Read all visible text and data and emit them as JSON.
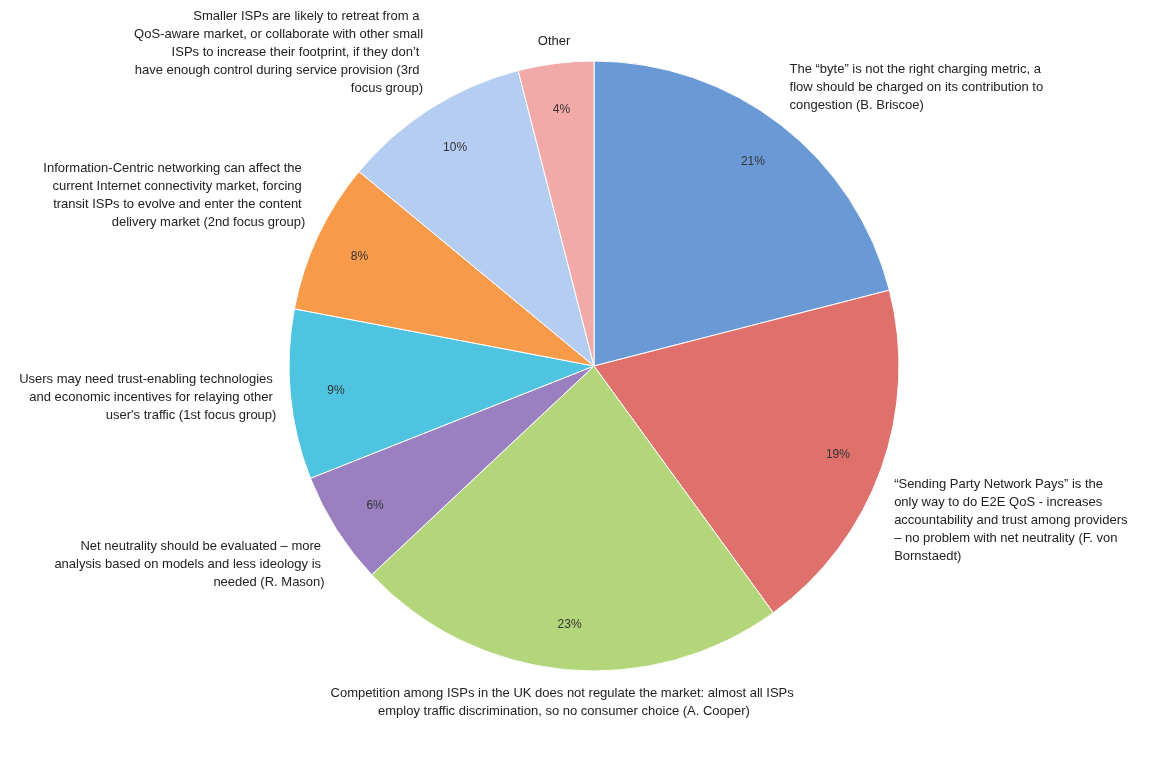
{
  "chart_data": {
    "type": "pie",
    "categories": [
      "The “byte” is not the right charging metric, a flow should be charged on its contribution to congestion (B. Briscoe)",
      "“Sending Party Network Pays” is the only way to do E2E QoS - increases accountability and trust among providers – no problem with net neutrality (F. von Bornstaedt)",
      "Competition among ISPs in the UK does not regulate the market: almost all ISPs employ traffic discrimination, so no consumer choice (A. Cooper)",
      "Net neutrality should be evaluated – more analysis based on models and less ideology is needed (R. Mason)",
      "Users may need trust-enabling technologies and economic incentives for relaying other user's traffic (1st focus group)",
      "Information-Centric networking can affect the current Internet connectivity market, forcing transit ISPs to evolve and enter the content delivery market (2nd focus group)",
      "Smaller ISPs are likely to retreat from a QoS-aware market, or collaborate with other small ISPs to increase their footprint, if they don’t have enough control during service provision (3rd focus group)",
      "Other"
    ],
    "values": [
      21,
      19,
      23,
      6,
      9,
      8,
      10,
      4
    ],
    "colors": [
      "#6a9ad6",
      "#e0706c",
      "#b3d67a",
      "#9a80c0",
      "#4fc4e0",
      "#f79a4a",
      "#b4cdf0",
      "#f2aaa8"
    ],
    "value_labels": [
      "21%",
      "19%",
      "23%",
      "6%",
      "9%",
      "8%",
      "10%",
      "4%"
    ],
    "legend": false
  }
}
